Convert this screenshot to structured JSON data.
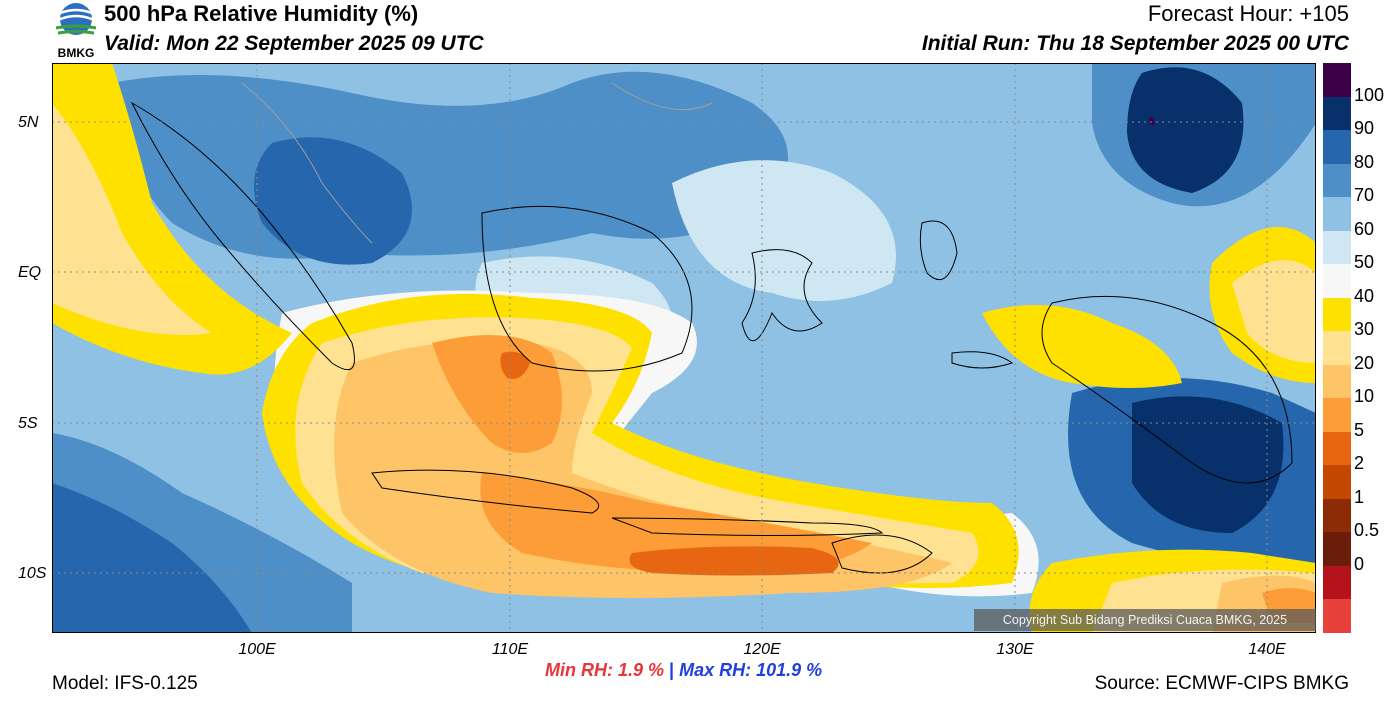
{
  "header": {
    "title": "500 hPa Relative Humidity (%)",
    "valid": "Valid: Mon 22 September 2025 09 UTC",
    "forecast_hour": "Forecast Hour: +105",
    "initial_run": "Initial Run: Thu 18 September 2025 00 UTC"
  },
  "logo": {
    "text": "BMKG"
  },
  "axes": {
    "lat_labels": [
      "5N",
      "EQ",
      "5S",
      "10S"
    ],
    "lon_labels": [
      "100E",
      "110E",
      "120E",
      "130E",
      "140E"
    ]
  },
  "colorbar": {
    "labels": [
      "100",
      "90",
      "80",
      "70",
      "60",
      "50",
      "40",
      "30",
      "20",
      "10",
      "5",
      "2",
      "1",
      "0.5",
      "0"
    ],
    "colors": [
      "#3c0048",
      "#08306b",
      "#2566ad",
      "#4d8fc6",
      "#8ec1e3",
      "#cfe6f3",
      "#f7f7f7",
      "#ffe100",
      "#fee292",
      "#fdc567",
      "#fd9d38",
      "#e86612",
      "#c44800",
      "#8b2c06",
      "#6b1d0a",
      "#b5131b",
      "#e8403a"
    ]
  },
  "stats": {
    "min_label": "Min RH:",
    "min_value": "1.9 %",
    "separator": "|",
    "max_label": "Max RH:",
    "max_value": "101.9 %",
    "min_color": "#e8353a",
    "max_color": "#1f3fe0"
  },
  "footer": {
    "model": "Model: IFS-0.125",
    "source": "Source: ECMWF-CIPS BMKG",
    "copyright": "Copyright Sub Bidang Prediksi Cuaca BMKG, 2025"
  }
}
